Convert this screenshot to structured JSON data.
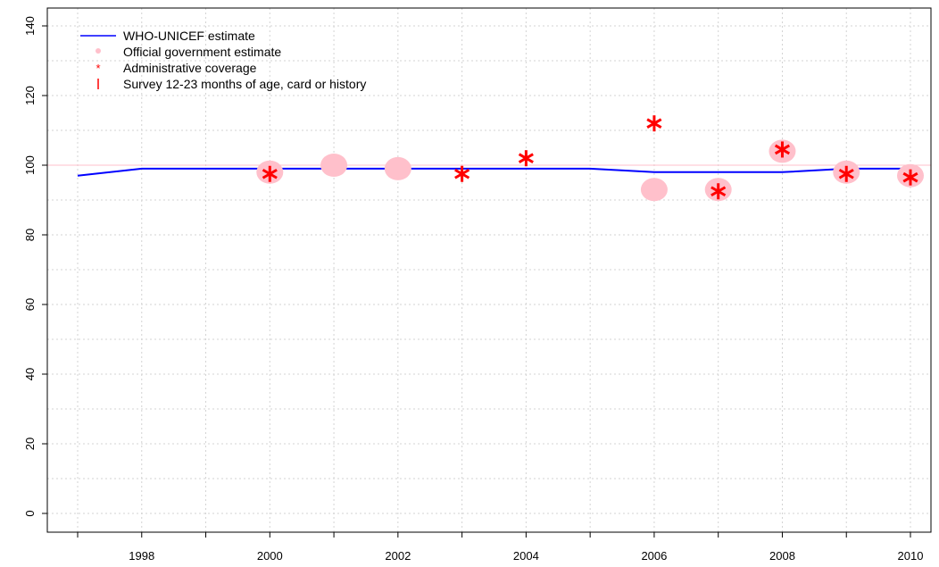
{
  "chart_data": {
    "type": "line",
    "title": "",
    "xlabel": "",
    "ylabel": "",
    "xlim": [
      1997,
      2010
    ],
    "ylim": [
      0,
      140
    ],
    "x_ticks": [
      "1998",
      "2000",
      "2002",
      "2004",
      "2006",
      "2008",
      "2010"
    ],
    "y_ticks": [
      "0",
      "20",
      "40",
      "60",
      "80",
      "100",
      "120",
      "140"
    ],
    "grid": true,
    "reference_line": 100,
    "legend_position": "top-left",
    "legend": [
      {
        "label": "WHO-UNICEF estimate",
        "symbol": "line",
        "color": "#0000ff"
      },
      {
        "label": "Official government estimate",
        "symbol": "dot",
        "color": "#ffc0cb"
      },
      {
        "label": "Administrative coverage",
        "symbol": "asterisk",
        "color": "#ff0000"
      },
      {
        "label": "Survey 12-23 months of age, card or history",
        "symbol": "bar",
        "color": "#ff0000"
      }
    ],
    "series": [
      {
        "name": "WHO-UNICEF estimate",
        "kind": "line",
        "color": "#0000ff",
        "x": [
          1997,
          1998,
          1999,
          2000,
          2001,
          2002,
          2003,
          2004,
          2005,
          2006,
          2007,
          2008,
          2009,
          2010
        ],
        "y": [
          97,
          99,
          99,
          99,
          99,
          99,
          99,
          99,
          99,
          98,
          98,
          98,
          99,
          99
        ]
      },
      {
        "name": "Official government estimate",
        "kind": "dot",
        "color": "#ffc0cb",
        "x": [
          2000,
          2001,
          2002,
          2006,
          2007,
          2008,
          2009,
          2010
        ],
        "y": [
          98,
          100,
          99,
          93,
          93,
          104,
          98,
          97
        ]
      },
      {
        "name": "Administrative coverage",
        "kind": "asterisk",
        "color": "#ff0000",
        "x": [
          2000,
          2003,
          2004,
          2006,
          2007,
          2008,
          2009,
          2010
        ],
        "y": [
          97.5,
          97.5,
          102,
          112,
          92.5,
          104.5,
          97.5,
          96.5
        ]
      }
    ]
  }
}
